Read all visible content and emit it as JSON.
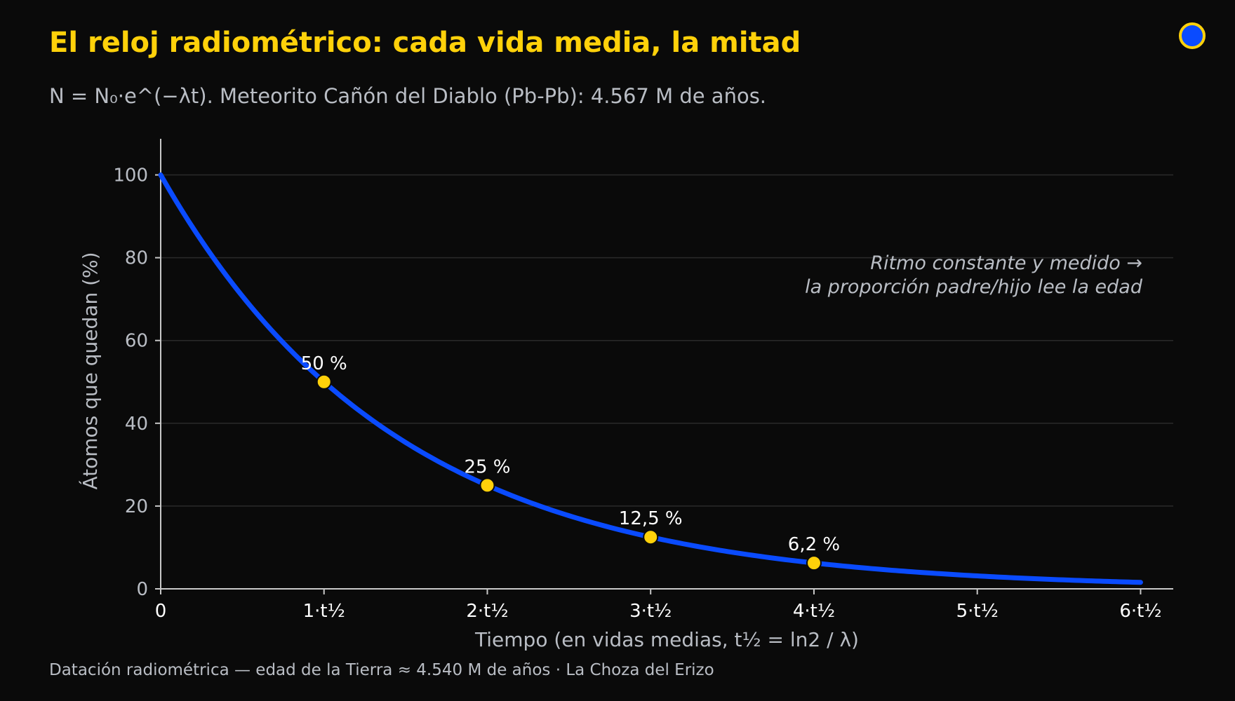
{
  "header": {
    "title": "El reloj radiométrico: cada vida media, la mitad",
    "subtitle": "N = N₀·e^(−λt). Meteorito Cañón del Diablo (Pb-Pb): 4.567 M de años."
  },
  "footer": {
    "text": "Datación radiométrica — edad de la Tierra ≈ 4.540 M de años  ·  La Choza del Erizo"
  },
  "colors": {
    "background": "#0a0a0a",
    "title": "#ffd10a",
    "curve": "#0a4bff",
    "markers": "#ffd10a",
    "text_muted": "#b9bdc4",
    "grid": "#2a2a2a",
    "axis": "#c8c8c8"
  },
  "chart_data": {
    "type": "line",
    "xlabel": "Tiempo (en vidas medias, t½ = ln2 / λ)",
    "ylabel": "Átomos que quedan (%)",
    "xlim": [
      0,
      6.2
    ],
    "ylim": [
      0,
      105
    ],
    "x_ticks": [
      0,
      1,
      2,
      3,
      4,
      5,
      6
    ],
    "x_tick_labels": [
      "0",
      "1·t½",
      "2·t½",
      "3·t½",
      "4·t½",
      "5·t½",
      "6·t½"
    ],
    "y_ticks": [
      0,
      20,
      40,
      60,
      80,
      100
    ],
    "y_tick_labels": [
      "0",
      "20",
      "40",
      "60",
      "80",
      "100"
    ],
    "grid": "horizontal",
    "curve": {
      "formula": "100 * 2^(-x)",
      "x_range": [
        0,
        6
      ]
    },
    "points": [
      {
        "x": 1,
        "y": 50,
        "label": "50 %"
      },
      {
        "x": 2,
        "y": 25,
        "label": "25 %"
      },
      {
        "x": 3,
        "y": 12.5,
        "label": "12,5 %"
      },
      {
        "x": 4,
        "y": 6.25,
        "label": "6,2 %"
      }
    ],
    "annotation": {
      "line1": "Ritmo constante y medido →",
      "line2": "la proporción padre/hijo lee la edad"
    }
  }
}
